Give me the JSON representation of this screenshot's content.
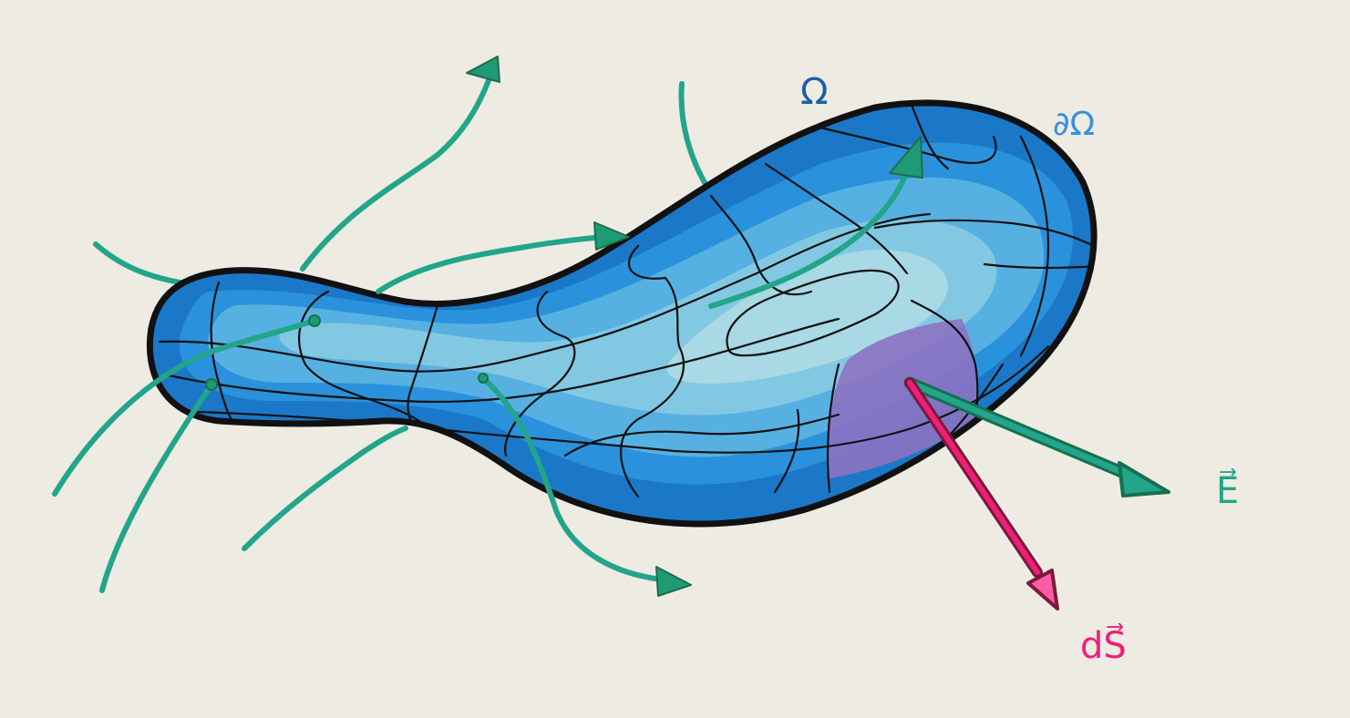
{
  "labels": {
    "volume": "Ω",
    "boundary": "∂Ω",
    "field": "E⃗",
    "area_element": "dS⃗"
  },
  "colors": {
    "background": "#eeebe3",
    "volume_label": "#1d5fa8",
    "boundary_label": "#3a8fde",
    "field_arrows": "#22a58a",
    "area_vector": "#ee1f78",
    "surface_patch": "#8d72c2",
    "outline": "#111111"
  }
}
